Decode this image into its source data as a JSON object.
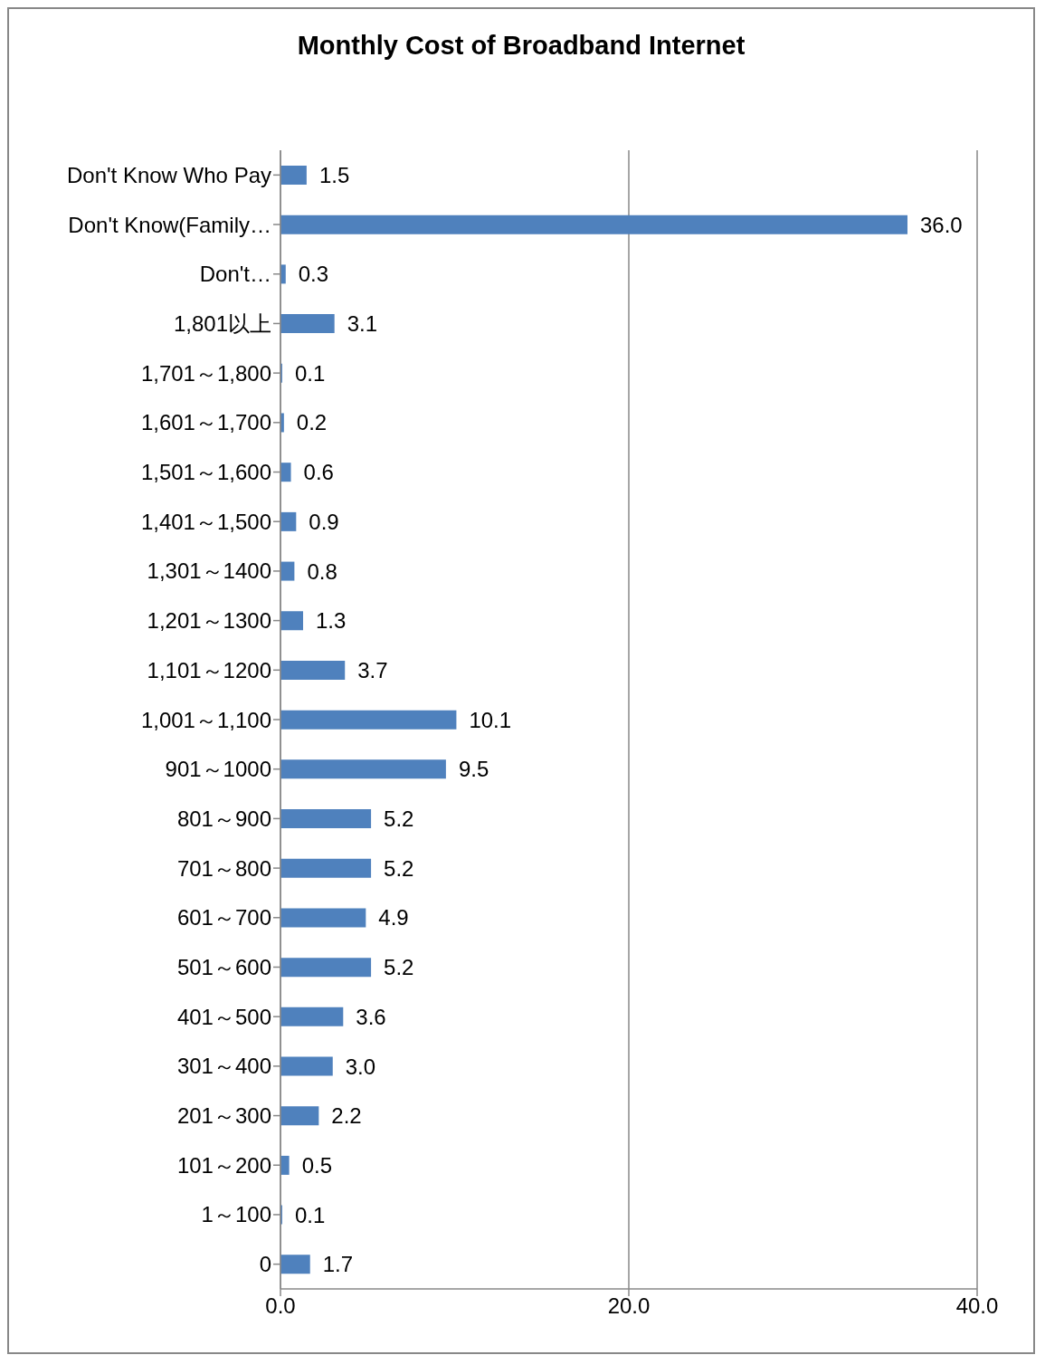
{
  "chart_data": {
    "type": "bar",
    "orientation": "horizontal",
    "title": "Monthly Cost of Broadband Internet",
    "categories": [
      "Don't Know Who Pay",
      "Don't Know(Family…",
      "Don't…",
      "1,801以上",
      "1,701～1,800",
      "1,601～1,700",
      "1,501～1,600",
      "1,401～1,500",
      "1,301～1400",
      "1,201～1300",
      "1,101～1200",
      "1,001～1,100",
      "901～1000",
      "801～900",
      "701～800",
      "601～700",
      "501～600",
      "401～500",
      "301～400",
      "201～300",
      "101～200",
      "1～100",
      "0"
    ],
    "values": [
      1.5,
      36.0,
      0.3,
      3.1,
      0.1,
      0.2,
      0.6,
      0.9,
      0.8,
      1.3,
      3.7,
      10.1,
      9.5,
      5.2,
      5.2,
      4.9,
      5.2,
      3.6,
      3.0,
      2.2,
      0.5,
      0.1,
      1.7
    ],
    "value_labels": [
      "1.5",
      "36.0",
      "0.3",
      "3.1",
      "0.1",
      "0.2",
      "0.6",
      "0.9",
      "0.8",
      "1.3",
      "3.7",
      "10.1",
      "9.5",
      "5.2",
      "5.2",
      "4.9",
      "5.2",
      "3.6",
      "3.0",
      "2.2",
      "0.5",
      "0.1",
      "1.7"
    ],
    "color": "#4f81bd",
    "xlim": [
      0,
      40
    ],
    "xticks": [
      {
        "value": 0,
        "label": "0.0"
      },
      {
        "value": 20,
        "label": "20.0"
      },
      {
        "value": 40,
        "label": "40.0"
      }
    ],
    "grid": "x"
  }
}
